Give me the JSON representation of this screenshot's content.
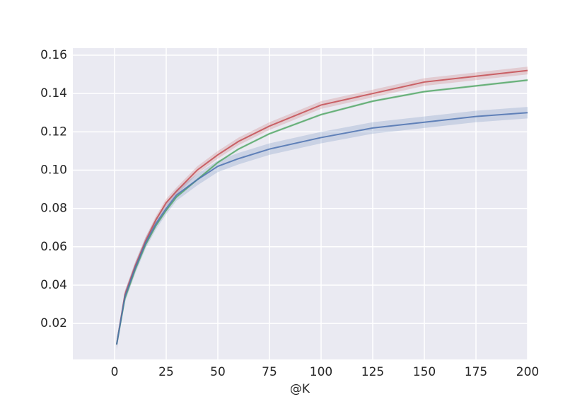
{
  "chart_data": {
    "type": "line",
    "xlabel": "@K",
    "x": [
      1,
      5,
      10,
      15,
      20,
      25,
      30,
      40,
      50,
      60,
      75,
      100,
      125,
      150,
      175,
      200
    ],
    "series": [
      {
        "color": "#c44e52",
        "ci": 0.002,
        "values": [
          0.009,
          0.035,
          0.05,
          0.063,
          0.074,
          0.083,
          0.089,
          0.1,
          0.108,
          0.115,
          0.123,
          0.134,
          0.14,
          0.146,
          0.149,
          0.152
        ]
      },
      {
        "color": "#55a868",
        "ci": 0.0006,
        "values": [
          0.009,
          0.033,
          0.048,
          0.061,
          0.071,
          0.079,
          0.086,
          0.095,
          0.104,
          0.111,
          0.119,
          0.129,
          0.136,
          0.141,
          0.144,
          0.147
        ]
      },
      {
        "color": "#4c72b0",
        "ci": 0.003,
        "values": [
          0.009,
          0.034,
          0.049,
          0.062,
          0.072,
          0.08,
          0.087,
          0.095,
          0.102,
          0.106,
          0.111,
          0.117,
          0.122,
          0.125,
          0.128,
          0.13
        ]
      }
    ],
    "xlim": [
      -20.2,
      200
    ],
    "ylim": [
      0.0012,
      0.1637
    ],
    "xticks": [
      0,
      25,
      50,
      75,
      100,
      125,
      150,
      175,
      200
    ],
    "yticks": [
      0.02,
      0.04,
      0.06,
      0.08,
      {
        "value": 0.1,
        "label": "0.10"
      },
      0.12,
      0.14,
      0.16
    ],
    "grid": true
  }
}
